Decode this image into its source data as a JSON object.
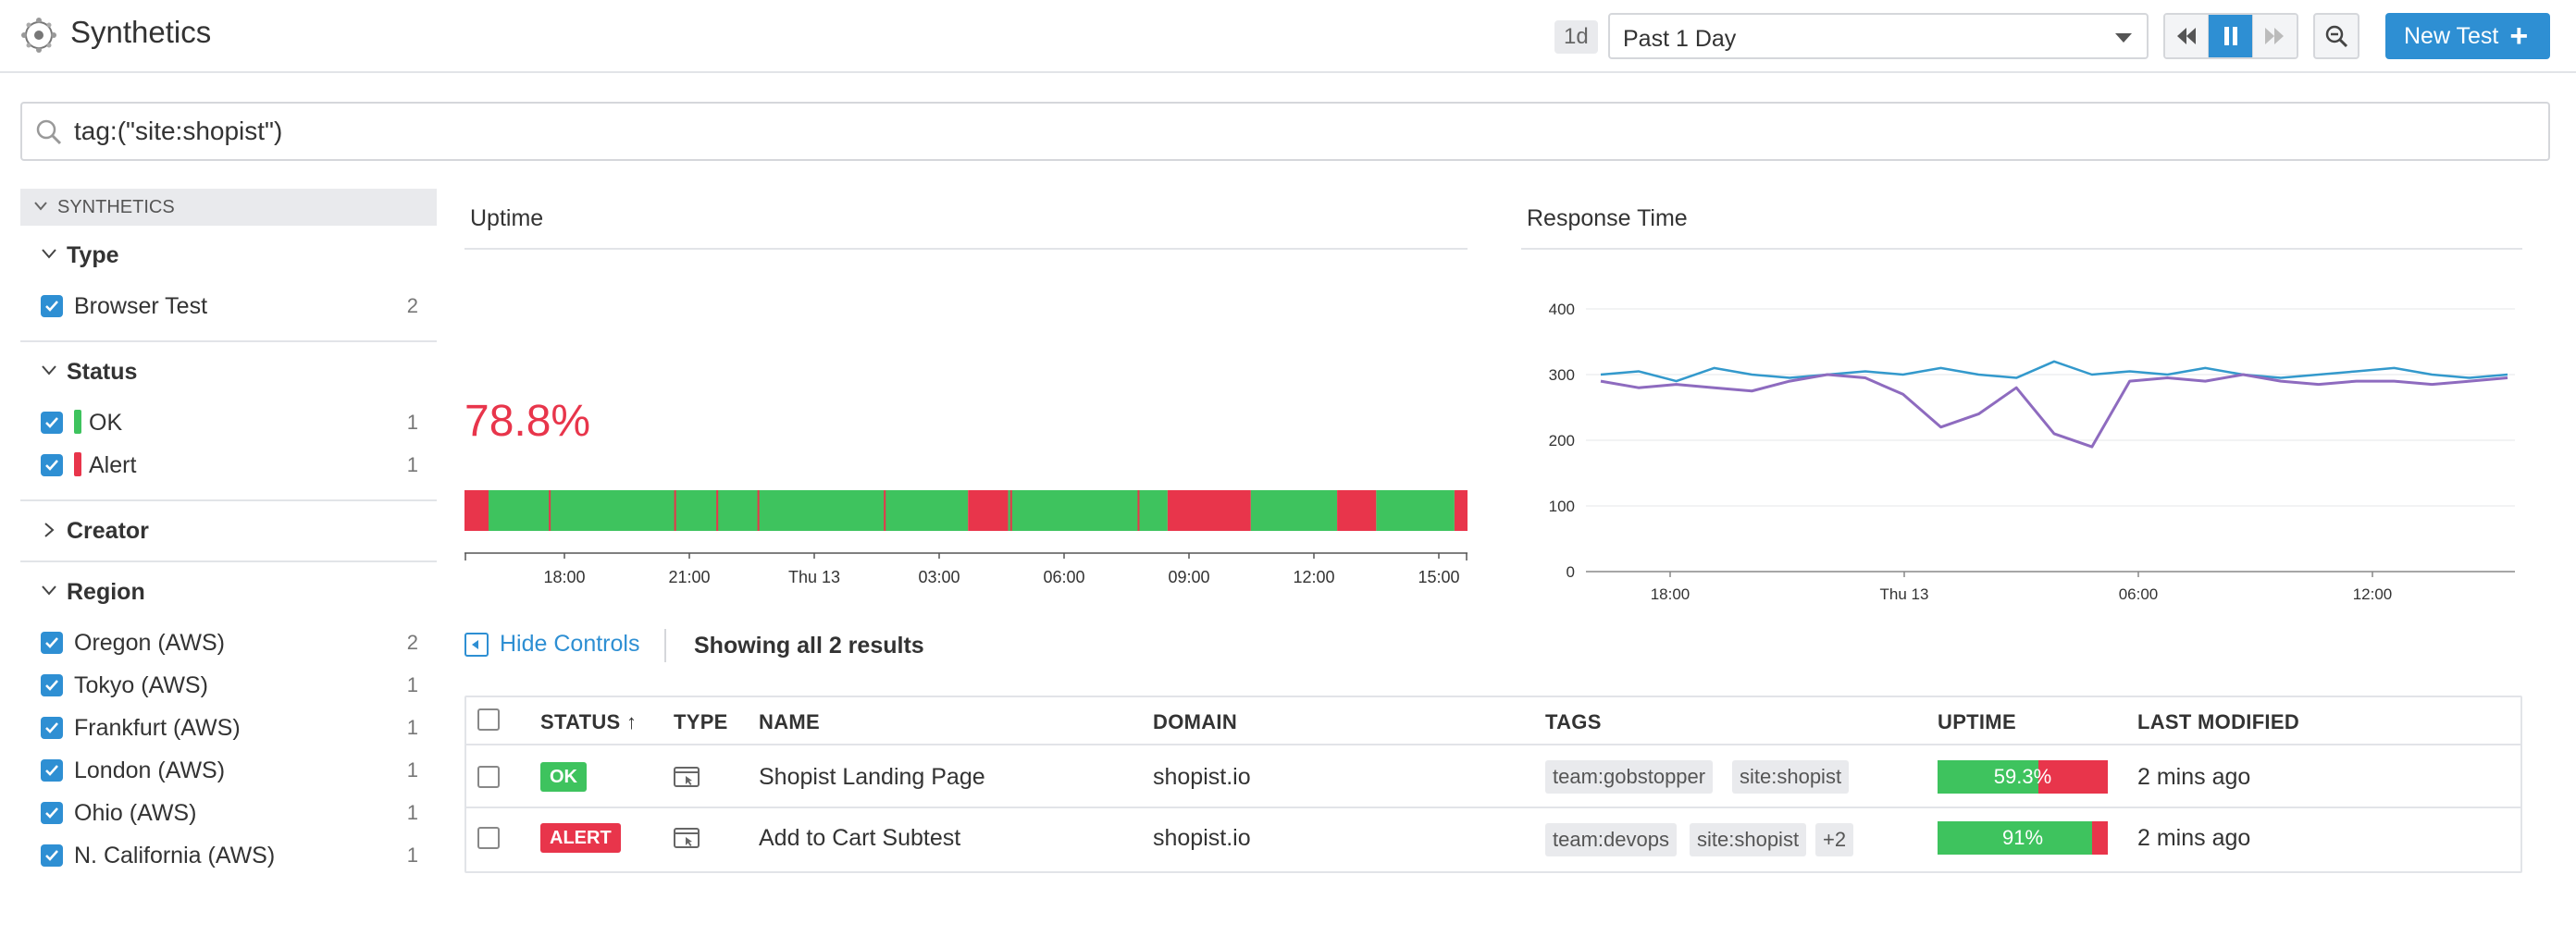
{
  "app": {
    "title": "Synthetics"
  },
  "header": {
    "interval_badge": "1d",
    "time_range": "Past 1 Day",
    "new_test_label": "New Test"
  },
  "search": {
    "query": "tag:(\"site:shopist\")"
  },
  "sidebar": {
    "root_label": "SYNTHETICS",
    "groups": {
      "type": {
        "title": "Type",
        "items": [
          {
            "label": "Browser Test",
            "count": "2"
          }
        ]
      },
      "status": {
        "title": "Status",
        "items": [
          {
            "label": "OK",
            "count": "1",
            "color": "#3ec35e"
          },
          {
            "label": "Alert",
            "count": "1",
            "color": "#e8354b"
          }
        ]
      },
      "creator": {
        "title": "Creator"
      },
      "region": {
        "title": "Region",
        "items": [
          {
            "label": "Oregon (AWS)",
            "count": "2"
          },
          {
            "label": "Tokyo (AWS)",
            "count": "1"
          },
          {
            "label": "Frankfurt (AWS)",
            "count": "1"
          },
          {
            "label": "London (AWS)",
            "count": "1"
          },
          {
            "label": "Ohio (AWS)",
            "count": "1"
          },
          {
            "label": "N. California (AWS)",
            "count": "1"
          }
        ]
      }
    }
  },
  "uptime": {
    "title": "Uptime",
    "value": "78.8%",
    "ticks": [
      "18:00",
      "21:00",
      "Thu 13",
      "03:00",
      "06:00",
      "09:00",
      "12:00",
      "15:00"
    ],
    "timeline_fraction": [
      {
        "status": "alert",
        "from": 0.0,
        "to": 0.024
      },
      {
        "status": "ok",
        "from": 0.024,
        "to": 0.502
      },
      {
        "status": "alert",
        "from": 0.502,
        "to": 0.542
      },
      {
        "status": "ok",
        "from": 0.542,
        "to": 0.701
      },
      {
        "status": "alert",
        "from": 0.701,
        "to": 0.784
      },
      {
        "status": "ok",
        "from": 0.784,
        "to": 0.87
      },
      {
        "status": "alert",
        "from": 0.87,
        "to": 0.909
      },
      {
        "status": "ok",
        "from": 0.909,
        "to": 0.987
      },
      {
        "status": "alert",
        "from": 0.987,
        "to": 1.0
      }
    ],
    "alert_ticks_fraction": [
      0.085,
      0.21,
      0.252,
      0.293,
      0.419,
      0.545,
      0.672
    ]
  },
  "response_time": {
    "title": "Response Time",
    "ticks_x": [
      "18:00",
      "Thu 13",
      "06:00",
      "12:00"
    ]
  },
  "chart_data": {
    "type": "line",
    "title": "Response Time",
    "x": [
      0,
      1,
      2,
      3,
      4,
      5,
      6,
      7,
      8,
      9,
      10,
      11,
      12,
      13,
      14,
      15,
      16,
      17,
      18,
      19,
      20,
      21,
      22,
      23,
      24
    ],
    "xticks": [
      "18:00",
      "Thu 13",
      "06:00",
      "12:00"
    ],
    "yticks": [
      0,
      100,
      200,
      300,
      400
    ],
    "ylim": [
      0,
      400
    ],
    "series": [
      {
        "color": "#3399cc",
        "values": [
          300,
          305,
          290,
          310,
          300,
          295,
          300,
          305,
          300,
          310,
          300,
          295,
          320,
          300,
          305,
          300,
          310,
          300,
          295,
          300,
          305,
          310,
          300,
          295,
          300
        ]
      },
      {
        "color": "#8e6bbf",
        "values": [
          290,
          280,
          285,
          280,
          275,
          290,
          300,
          295,
          270,
          220,
          240,
          280,
          210,
          190,
          290,
          295,
          290,
          300,
          290,
          285,
          290,
          290,
          285,
          290,
          295
        ]
      }
    ]
  },
  "controls": {
    "hide_controls_label": "Hide Controls",
    "results_label": "Showing all 2 results"
  },
  "table": {
    "headers": {
      "status": "STATUS",
      "sort_arrow": "↑",
      "type": "TYPE",
      "name": "NAME",
      "domain": "DOMAIN",
      "tags": "TAGS",
      "uptime": "UPTIME",
      "last_modified": "LAST MODIFIED"
    },
    "rows": [
      {
        "status": "OK",
        "status_color": "#3ec35e",
        "name": "Shopist Landing Page",
        "domain": "shopist.io",
        "tags": [
          "team:gobstopper",
          "site:shopist"
        ],
        "uptime_text": "59.3%",
        "uptime_fraction": 0.593,
        "last_modified": "2 mins ago"
      },
      {
        "status": "ALERT",
        "status_color": "#e8354b",
        "name": "Add to Cart Subtest",
        "domain": "shopist.io",
        "tags": [
          "team:devops",
          "site:shopist",
          "+2"
        ],
        "uptime_text": "91%",
        "uptime_fraction": 0.91,
        "last_modified": "2 mins ago"
      }
    ]
  }
}
